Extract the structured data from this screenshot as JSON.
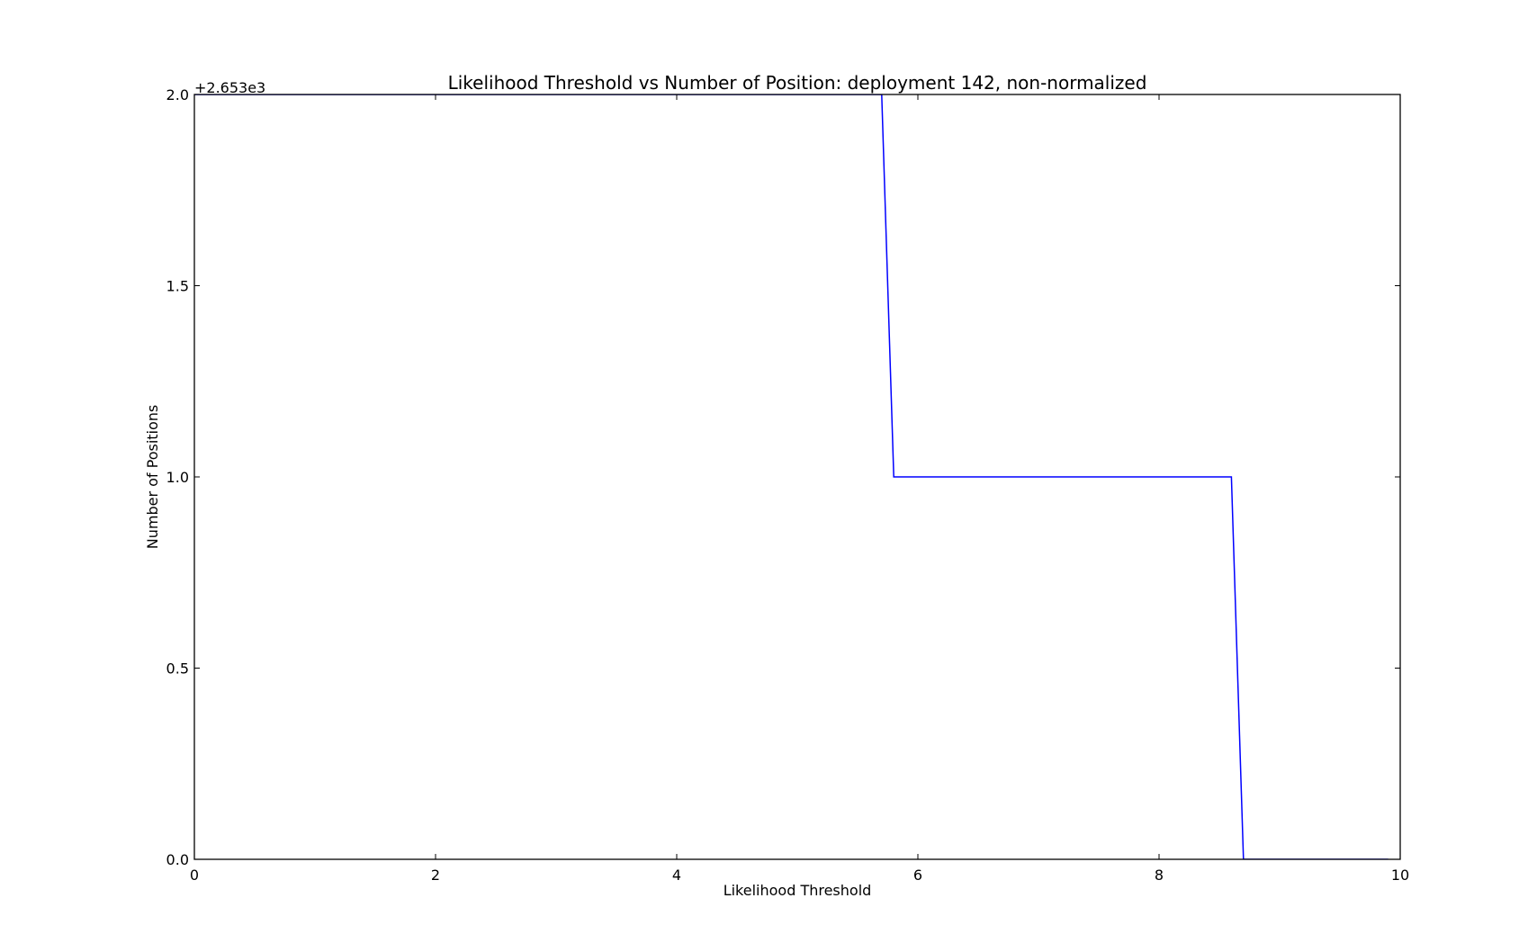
{
  "chart_data": {
    "type": "line",
    "title": "Likelihood Threshold vs Number of Position: deployment 142, non-normalized",
    "xlabel": "Likelihood Threshold",
    "ylabel": "Number of Positions",
    "offset_label": "+2.653e3",
    "xlim": [
      0,
      10
    ],
    "ylim": [
      0.0,
      2.0
    ],
    "xticks": [
      "0",
      "2",
      "4",
      "6",
      "8",
      "10"
    ],
    "xtick_values": [
      0,
      2,
      4,
      6,
      8,
      10
    ],
    "yticks": [
      "0.0",
      "0.5",
      "1.0",
      "1.5",
      "2.0"
    ],
    "ytick_values": [
      0.0,
      0.5,
      1.0,
      1.5,
      2.0
    ],
    "grid": false,
    "series": [
      {
        "color": "#0000ff",
        "x": [
          0.0,
          5.7,
          5.8,
          8.6,
          8.7,
          9.9
        ],
        "y": [
          2.0,
          2.0,
          1.0,
          1.0,
          0.0,
          0.0
        ]
      }
    ]
  }
}
